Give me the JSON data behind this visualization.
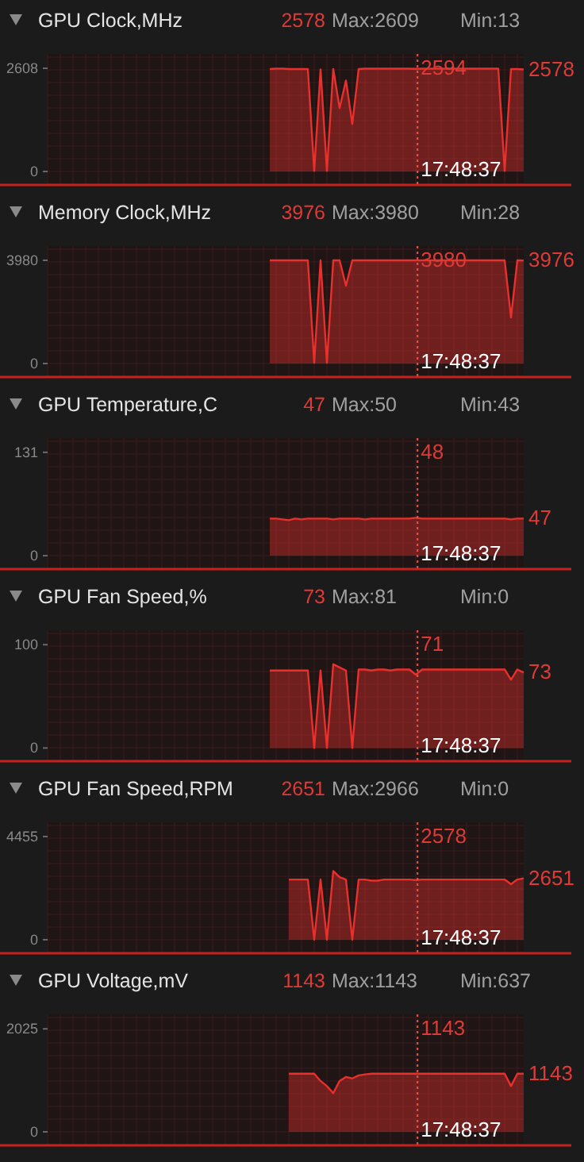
{
  "chart_data": [
    {
      "type": "area",
      "title": "GPU Clock,MHz",
      "annotations": [
        "2578",
        "Max:2609",
        "Min:13",
        "17:48:37",
        "2594",
        "2578"
      ],
      "categories": [
        null,
        null,
        null,
        null,
        null,
        null,
        null,
        null,
        null,
        null,
        null,
        null,
        null,
        null,
        null,
        null,
        null,
        null,
        null,
        null,
        null,
        null,
        null,
        null,
        null,
        null,
        null,
        null,
        null,
        null,
        null,
        null,
        null,
        null,
        null,
        null,
        null,
        null,
        null,
        null,
        null,
        null,
        null,
        null,
        null,
        null,
        null,
        null,
        null,
        null,
        null,
        null,
        null,
        null,
        null,
        null,
        null,
        null,
        null,
        null,
        null,
        null,
        null,
        null,
        null,
        null,
        null,
        null,
        null,
        null,
        null,
        null,
        null,
        null,
        null,
        null
      ],
      "ylim": [
        -320,
        2970
      ],
      "yticks": [
        0,
        2608
      ],
      "grid": true,
      "series": [
        {
          "color": "#e8302c",
          "values": [
            null,
            null,
            null,
            null,
            null,
            null,
            null,
            null,
            null,
            null,
            null,
            null,
            null,
            null,
            null,
            null,
            null,
            null,
            null,
            null,
            null,
            null,
            null,
            null,
            null,
            null,
            null,
            null,
            null,
            null,
            null,
            null,
            null,
            null,
            null,
            2590,
            2600,
            2600,
            2590,
            2590,
            2590,
            2590,
            13,
            2580,
            13,
            2590,
            1600,
            2300,
            1200,
            2590,
            2600,
            2600,
            2600,
            2600,
            2600,
            2600,
            2600,
            2600,
            2594,
            2600,
            2600,
            2600,
            2600,
            2600,
            2600,
            2600,
            2600,
            2600,
            2600,
            2600,
            2600,
            2600,
            13,
            2590,
            2590,
            2578
          ]
        }
      ]
    },
    {
      "type": "area",
      "title": "Memory Clock,MHz",
      "annotations": [
        "3976",
        "Max:3980",
        "Min:28",
        "17:48:37",
        "3980",
        "3976"
      ],
      "categories": [
        null,
        null,
        null,
        null,
        null,
        null,
        null,
        null,
        null,
        null,
        null,
        null,
        null,
        null,
        null,
        null,
        null,
        null,
        null,
        null,
        null,
        null,
        null,
        null,
        null,
        null,
        null,
        null,
        null,
        null,
        null,
        null,
        null,
        null,
        null,
        null,
        null,
        null,
        null,
        null,
        null,
        null,
        null,
        null,
        null,
        null,
        null,
        null,
        null,
        null,
        null,
        null,
        null,
        null,
        null,
        null,
        null,
        null,
        null,
        null,
        null,
        null,
        null,
        null,
        null,
        null,
        null,
        null,
        null,
        null,
        null,
        null,
        null,
        null,
        null,
        null
      ],
      "ylim": [
        -490,
        4530
      ],
      "yticks": [
        0,
        3980
      ],
      "grid": true,
      "series": [
        {
          "color": "#e8302c",
          "values": [
            null,
            null,
            null,
            null,
            null,
            null,
            null,
            null,
            null,
            null,
            null,
            null,
            null,
            null,
            null,
            null,
            null,
            null,
            null,
            null,
            null,
            null,
            null,
            null,
            null,
            null,
            null,
            null,
            null,
            null,
            null,
            null,
            null,
            null,
            null,
            3980,
            3980,
            3980,
            3980,
            3980,
            3980,
            3980,
            28,
            3980,
            28,
            3980,
            3980,
            3000,
            3980,
            3980,
            3980,
            3980,
            3980,
            3980,
            3980,
            3980,
            3980,
            3980,
            3980,
            3980,
            3980,
            3980,
            3980,
            3980,
            3980,
            3980,
            3980,
            3980,
            3980,
            3980,
            3980,
            3980,
            3980,
            1770,
            3980,
            3976
          ]
        }
      ]
    },
    {
      "type": "area",
      "title": "GPU Temperature,C",
      "annotations": [
        "47",
        "Max:50",
        "Min:43",
        "17:48:37",
        "48",
        "47"
      ],
      "categories": [
        null,
        null,
        null,
        null,
        null,
        null,
        null,
        null,
        null,
        null,
        null,
        null,
        null,
        null,
        null,
        null,
        null,
        null,
        null,
        null,
        null,
        null,
        null,
        null,
        null,
        null,
        null,
        null,
        null,
        null,
        null,
        null,
        null,
        null,
        null,
        null,
        null,
        null,
        null,
        null,
        null,
        null,
        null,
        null,
        null,
        null,
        null,
        null,
        null,
        null,
        null,
        null,
        null,
        null,
        null,
        null,
        null,
        null,
        null,
        null,
        null,
        null,
        null,
        null,
        null,
        null,
        null,
        null,
        null,
        null,
        null,
        null,
        null,
        null,
        null,
        null
      ],
      "ylim": [
        -16,
        149
      ],
      "yticks": [
        0,
        131
      ],
      "grid": true,
      "series": [
        {
          "color": "#e8302c",
          "values": [
            null,
            null,
            null,
            null,
            null,
            null,
            null,
            null,
            null,
            null,
            null,
            null,
            null,
            null,
            null,
            null,
            null,
            null,
            null,
            null,
            null,
            null,
            null,
            null,
            null,
            null,
            null,
            null,
            null,
            null,
            null,
            null,
            null,
            null,
            null,
            47,
            47,
            46,
            45,
            47,
            46,
            47,
            47,
            47,
            47,
            46,
            47,
            47,
            47,
            47,
            46,
            47,
            47,
            47,
            47,
            47,
            47,
            47,
            48,
            47,
            47,
            47,
            47,
            47,
            47,
            47,
            47,
            47,
            47,
            47,
            47,
            47,
            47,
            46,
            47,
            47
          ]
        }
      ]
    },
    {
      "type": "area",
      "title": "GPU Fan Speed,%",
      "annotations": [
        "73",
        "Max:81",
        "Min:0",
        "17:48:37",
        "71",
        "73"
      ],
      "categories": [
        null,
        null,
        null,
        null,
        null,
        null,
        null,
        null,
        null,
        null,
        null,
        null,
        null,
        null,
        null,
        null,
        null,
        null,
        null,
        null,
        null,
        null,
        null,
        null,
        null,
        null,
        null,
        null,
        null,
        null,
        null,
        null,
        null,
        null,
        null,
        null,
        null,
        null,
        null,
        null,
        null,
        null,
        null,
        null,
        null,
        null,
        null,
        null,
        null,
        null,
        null,
        null,
        null,
        null,
        null,
        null,
        null,
        null,
        null,
        null,
        null,
        null,
        null,
        null,
        null,
        null,
        null,
        null,
        null,
        null,
        null,
        null,
        null,
        null,
        null,
        null
      ],
      "ylim": [
        -12,
        114
      ],
      "yticks": [
        0,
        100
      ],
      "grid": true,
      "series": [
        {
          "color": "#e8302c",
          "values": [
            null,
            null,
            null,
            null,
            null,
            null,
            null,
            null,
            null,
            null,
            null,
            null,
            null,
            null,
            null,
            null,
            null,
            null,
            null,
            null,
            null,
            null,
            null,
            null,
            null,
            null,
            null,
            null,
            null,
            null,
            null,
            null,
            null,
            null,
            null,
            75,
            75,
            75,
            75,
            75,
            75,
            75,
            0,
            75,
            0,
            81,
            78,
            75,
            0,
            76,
            76,
            75,
            76,
            76,
            75,
            76,
            76,
            76,
            71,
            76,
            76,
            76,
            76,
            76,
            76,
            76,
            76,
            76,
            76,
            76,
            76,
            76,
            76,
            66,
            76,
            73
          ]
        }
      ]
    },
    {
      "type": "area",
      "title": "GPU Fan Speed,RPM",
      "annotations": [
        "2651",
        "Max:2966",
        "Min:0",
        "17:48:37",
        "2578",
        "2651"
      ],
      "categories": [
        null,
        null,
        null,
        null,
        null,
        null,
        null,
        null,
        null,
        null,
        null,
        null,
        null,
        null,
        null,
        null,
        null,
        null,
        null,
        null,
        null,
        null,
        null,
        null,
        null,
        null,
        null,
        null,
        null,
        null,
        null,
        null,
        null,
        null,
        null,
        null,
        null,
        null,
        null,
        null,
        null,
        null,
        null,
        null,
        null,
        null,
        null,
        null,
        null,
        null,
        null,
        null,
        null,
        null,
        null,
        null,
        null,
        null,
        null,
        null,
        null,
        null,
        null,
        null,
        null,
        null,
        null,
        null,
        null,
        null,
        null,
        null,
        null,
        null,
        null,
        null
      ],
      "ylim": [
        -550,
        5070
      ],
      "yticks": [
        0,
        4455
      ],
      "grid": true,
      "series": [
        {
          "color": "#e8302c",
          "values": [
            null,
            null,
            null,
            null,
            null,
            null,
            null,
            null,
            null,
            null,
            null,
            null,
            null,
            null,
            null,
            null,
            null,
            null,
            null,
            null,
            null,
            null,
            null,
            null,
            null,
            null,
            null,
            null,
            null,
            null,
            null,
            null,
            null,
            null,
            null,
            null,
            null,
            null,
            2600,
            2600,
            2600,
            2600,
            0,
            2600,
            0,
            2966,
            2700,
            2600,
            0,
            2600,
            2600,
            2550,
            2550,
            2600,
            2600,
            2600,
            2600,
            2600,
            2578,
            2600,
            2600,
            2600,
            2600,
            2600,
            2600,
            2600,
            2600,
            2600,
            2600,
            2600,
            2600,
            2600,
            2600,
            2400,
            2600,
            2651
          ]
        }
      ]
    },
    {
      "type": "area",
      "title": "GPU Voltage,mV",
      "annotations": [
        "1143",
        "Max:1143",
        "Min:637",
        "17:48:37",
        "1143",
        "1143"
      ],
      "categories": [
        null,
        null,
        null,
        null,
        null,
        null,
        null,
        null,
        null,
        null,
        null,
        null,
        null,
        null,
        null,
        null,
        null,
        null,
        null,
        null,
        null,
        null,
        null,
        null,
        null,
        null,
        null,
        null,
        null,
        null,
        null,
        null,
        null,
        null,
        null,
        null,
        null,
        null,
        null,
        null,
        null,
        null,
        null,
        null,
        null,
        null,
        null,
        null,
        null,
        null,
        null,
        null,
        null,
        null,
        null,
        null,
        null,
        null,
        null,
        null,
        null,
        null,
        null,
        null,
        null,
        null,
        null,
        null,
        null,
        null,
        null,
        null,
        null,
        null,
        null,
        null
      ],
      "ylim": [
        -250,
        2310
      ],
      "yticks": [
        0,
        2025
      ],
      "grid": true,
      "series": [
        {
          "color": "#e8302c",
          "values": [
            null,
            null,
            null,
            null,
            null,
            null,
            null,
            null,
            null,
            null,
            null,
            null,
            null,
            null,
            null,
            null,
            null,
            null,
            null,
            null,
            null,
            null,
            null,
            null,
            null,
            null,
            null,
            null,
            null,
            null,
            null,
            null,
            null,
            null,
            null,
            null,
            null,
            null,
            1143,
            1143,
            1143,
            1143,
            1143,
            1000,
            900,
            760,
            1000,
            1080,
            1050,
            1110,
            1130,
            1143,
            1143,
            1143,
            1143,
            1143,
            1143,
            1143,
            1143,
            1143,
            1143,
            1143,
            1143,
            1143,
            1143,
            1143,
            1143,
            1143,
            1143,
            1143,
            1143,
            1143,
            1143,
            900,
            1143,
            1143
          ]
        }
      ]
    }
  ]
}
